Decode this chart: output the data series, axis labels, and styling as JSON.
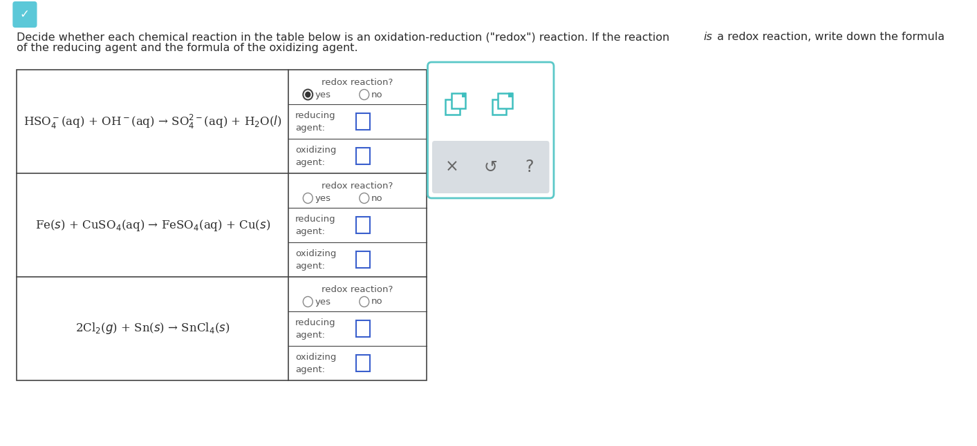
{
  "bg_color": "#ffffff",
  "text_color": "#2c2c2c",
  "header_line1": "Decide whether each chemical reaction in the table below is an oxidation-reduction (\"redox\") reaction. If the reaction ",
  "header_italic": "is",
  "header_line1_end": " a redox reaction, write down the formula",
  "header_line2": "of the reducing agent and the formula of the oxidizing agent.",
  "header_fontsize": 11.5,
  "reactions": [
    "HSO$_4^-$(aq) + OH$^-$(aq) → SO$_4^{2-}$(aq) + H$_2$O($l$)",
    "Fe($s$) + CuSO$_4$(aq) → FeSO$_4$(aq) + Cu($s$)",
    "2Cl$_2$($g$) + Sn($s$) → SnCl$_4$($s$)"
  ],
  "right_panel_border_color": "#5bc8c8",
  "toolbar_bg": "#d8dde2",
  "icon_color_teal": "#3dbdbd",
  "radio_circle_color": "#888888",
  "input_box_color": "#3a5fcd",
  "table_border_color": "#444444",
  "cell_text_color": "#555555",
  "teal_icon_color": "#40bfbf"
}
